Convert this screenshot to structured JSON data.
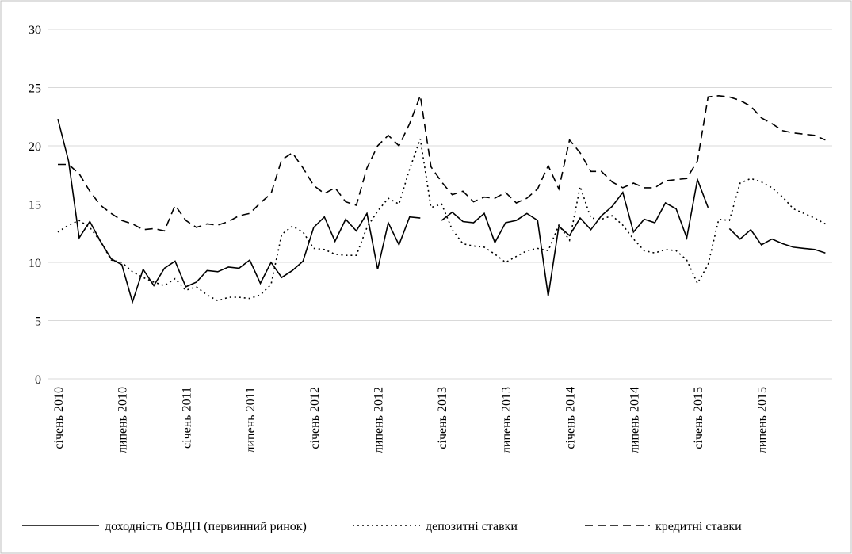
{
  "chart_data": {
    "type": "line",
    "categories": [
      "січень 2010",
      null,
      null,
      null,
      null,
      null,
      "липень 2010",
      null,
      null,
      null,
      null,
      null,
      "січень 2011",
      null,
      null,
      null,
      null,
      null,
      "липень 2011",
      null,
      null,
      null,
      null,
      null,
      "січень 2012",
      null,
      null,
      null,
      null,
      null,
      "липень 2012",
      null,
      null,
      null,
      null,
      null,
      "січень 2013",
      null,
      null,
      null,
      null,
      null,
      "липень 2013",
      null,
      null,
      null,
      null,
      null,
      "січень 2014",
      null,
      null,
      null,
      null,
      null,
      "липень 2014",
      null,
      null,
      null,
      null,
      null,
      "січень 2015",
      null,
      null,
      null,
      null,
      null,
      "липень 2015",
      null,
      null,
      null,
      null,
      null,
      null
    ],
    "series": [
      {
        "name": "доходність ОВДП (первинний ринок)",
        "color": "#000000",
        "dash": "solid",
        "values": [
          22.3,
          18.7,
          12.1,
          13.5,
          11.8,
          10.3,
          9.8,
          6.6,
          9.4,
          8.0,
          9.5,
          10.1,
          7.9,
          8.3,
          9.3,
          9.2,
          9.6,
          9.5,
          10.2,
          8.2,
          10.0,
          8.7,
          9.3,
          10.1,
          13.0,
          13.9,
          11.8,
          13.7,
          12.7,
          14.2,
          9.4,
          13.4,
          11.5,
          13.9,
          13.8,
          null,
          13.6,
          14.3,
          13.5,
          13.4,
          14.2,
          11.7,
          13.4,
          13.6,
          14.2,
          13.6,
          7.1,
          13.1,
          12.3,
          13.8,
          12.8,
          14.0,
          14.8,
          16.0,
          12.6,
          13.7,
          13.4,
          15.1,
          14.6,
          12.1,
          17.1,
          14.7,
          null,
          12.9,
          12.0,
          12.8,
          11.5,
          12.0,
          11.6,
          11.3,
          11.2,
          11.1,
          10.8
        ]
      },
      {
        "name": "депозитні ставки",
        "color": "#000000",
        "dash": "dotted",
        "values": [
          12.6,
          13.2,
          13.6,
          13.0,
          11.8,
          10.2,
          10.0,
          9.2,
          8.7,
          8.3,
          8.0,
          8.6,
          7.6,
          7.9,
          7.2,
          6.7,
          7.0,
          7.0,
          6.9,
          7.2,
          8.1,
          12.4,
          13.1,
          12.6,
          11.2,
          11.1,
          10.7,
          10.6,
          10.6,
          13.0,
          14.4,
          15.5,
          15.0,
          18.0,
          20.6,
          14.7,
          15.0,
          12.8,
          11.6,
          11.4,
          11.3,
          10.7,
          10.0,
          10.5,
          11.0,
          11.2,
          11.0,
          13.2,
          11.9,
          16.5,
          13.8,
          13.7,
          14.0,
          13.2,
          12.0,
          11.0,
          10.8,
          11.1,
          11.0,
          10.2,
          8.2,
          9.8,
          13.7,
          13.6,
          16.8,
          17.2,
          16.9,
          16.4,
          15.6,
          14.6,
          14.2,
          13.8,
          13.3
        ]
      },
      {
        "name": "кредитні ставки",
        "color": "#000000",
        "dash": "dashed",
        "values": [
          18.4,
          18.4,
          17.6,
          16.1,
          14.9,
          14.2,
          13.6,
          13.3,
          12.8,
          12.9,
          12.7,
          14.9,
          13.6,
          13.0,
          13.3,
          13.2,
          13.5,
          14.0,
          14.2,
          15.1,
          15.9,
          18.8,
          19.4,
          18.1,
          16.6,
          15.9,
          16.4,
          15.2,
          14.9,
          18.1,
          20.0,
          20.9,
          20.0,
          21.9,
          24.3,
          18.2,
          16.9,
          15.8,
          16.1,
          15.2,
          15.6,
          15.5,
          16.0,
          15.1,
          15.5,
          16.3,
          18.3,
          16.3,
          20.5,
          19.4,
          17.8,
          17.8,
          16.9,
          16.4,
          16.8,
          16.4,
          16.4,
          17.0,
          17.1,
          17.2,
          18.7,
          24.2,
          24.3,
          24.2,
          23.9,
          23.4,
          22.4,
          21.9,
          21.3,
          21.1,
          21.0,
          20.9,
          20.5
        ]
      }
    ],
    "ylim": [
      0,
      30
    ],
    "yticks": [
      0,
      5,
      10,
      15,
      20,
      25,
      30
    ],
    "grid": true,
    "legend": "bottom"
  }
}
